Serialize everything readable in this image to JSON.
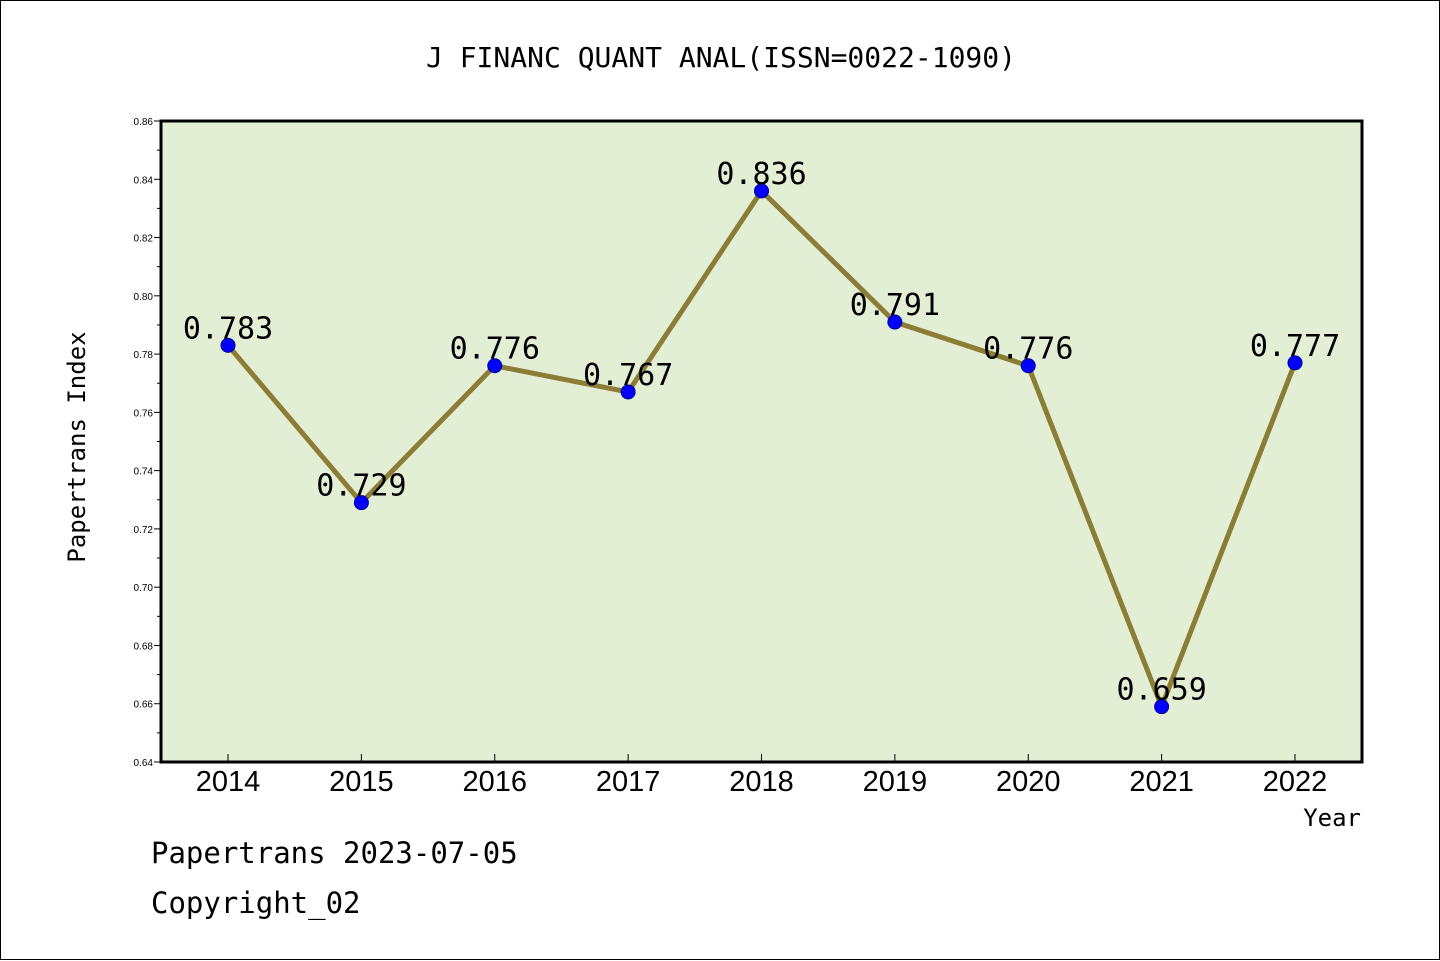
{
  "chart_data": {
    "type": "line",
    "title": "J FINANC QUANT ANAL(ISSN=0022-1090)",
    "xlabel": "Year",
    "ylabel": "Papertrans Index",
    "categories": [
      "2014",
      "2015",
      "2016",
      "2017",
      "2018",
      "2019",
      "2020",
      "2021",
      "2022"
    ],
    "values": [
      0.783,
      0.729,
      0.776,
      0.767,
      0.836,
      0.791,
      0.776,
      0.659,
      0.777
    ],
    "data_labels": [
      "0.783",
      "0.729",
      "0.776",
      "0.767",
      "0.836",
      "0.791",
      "0.776",
      "0.659",
      "0.777"
    ],
    "ylim": [
      0.64,
      0.86
    ],
    "yticks": [
      "0.64",
      "0.66",
      "0.68",
      "0.70",
      "0.72",
      "0.74",
      "0.76",
      "0.78",
      "0.80",
      "0.82",
      "0.84",
      "0.86"
    ],
    "grid": false,
    "colors": {
      "plot_background": "#e2efd5",
      "line": "#8b7d35",
      "marker": "#0000ff"
    }
  },
  "footer": {
    "line1": "Papertrans 2023-07-05",
    "line2": "Copyright_02"
  }
}
